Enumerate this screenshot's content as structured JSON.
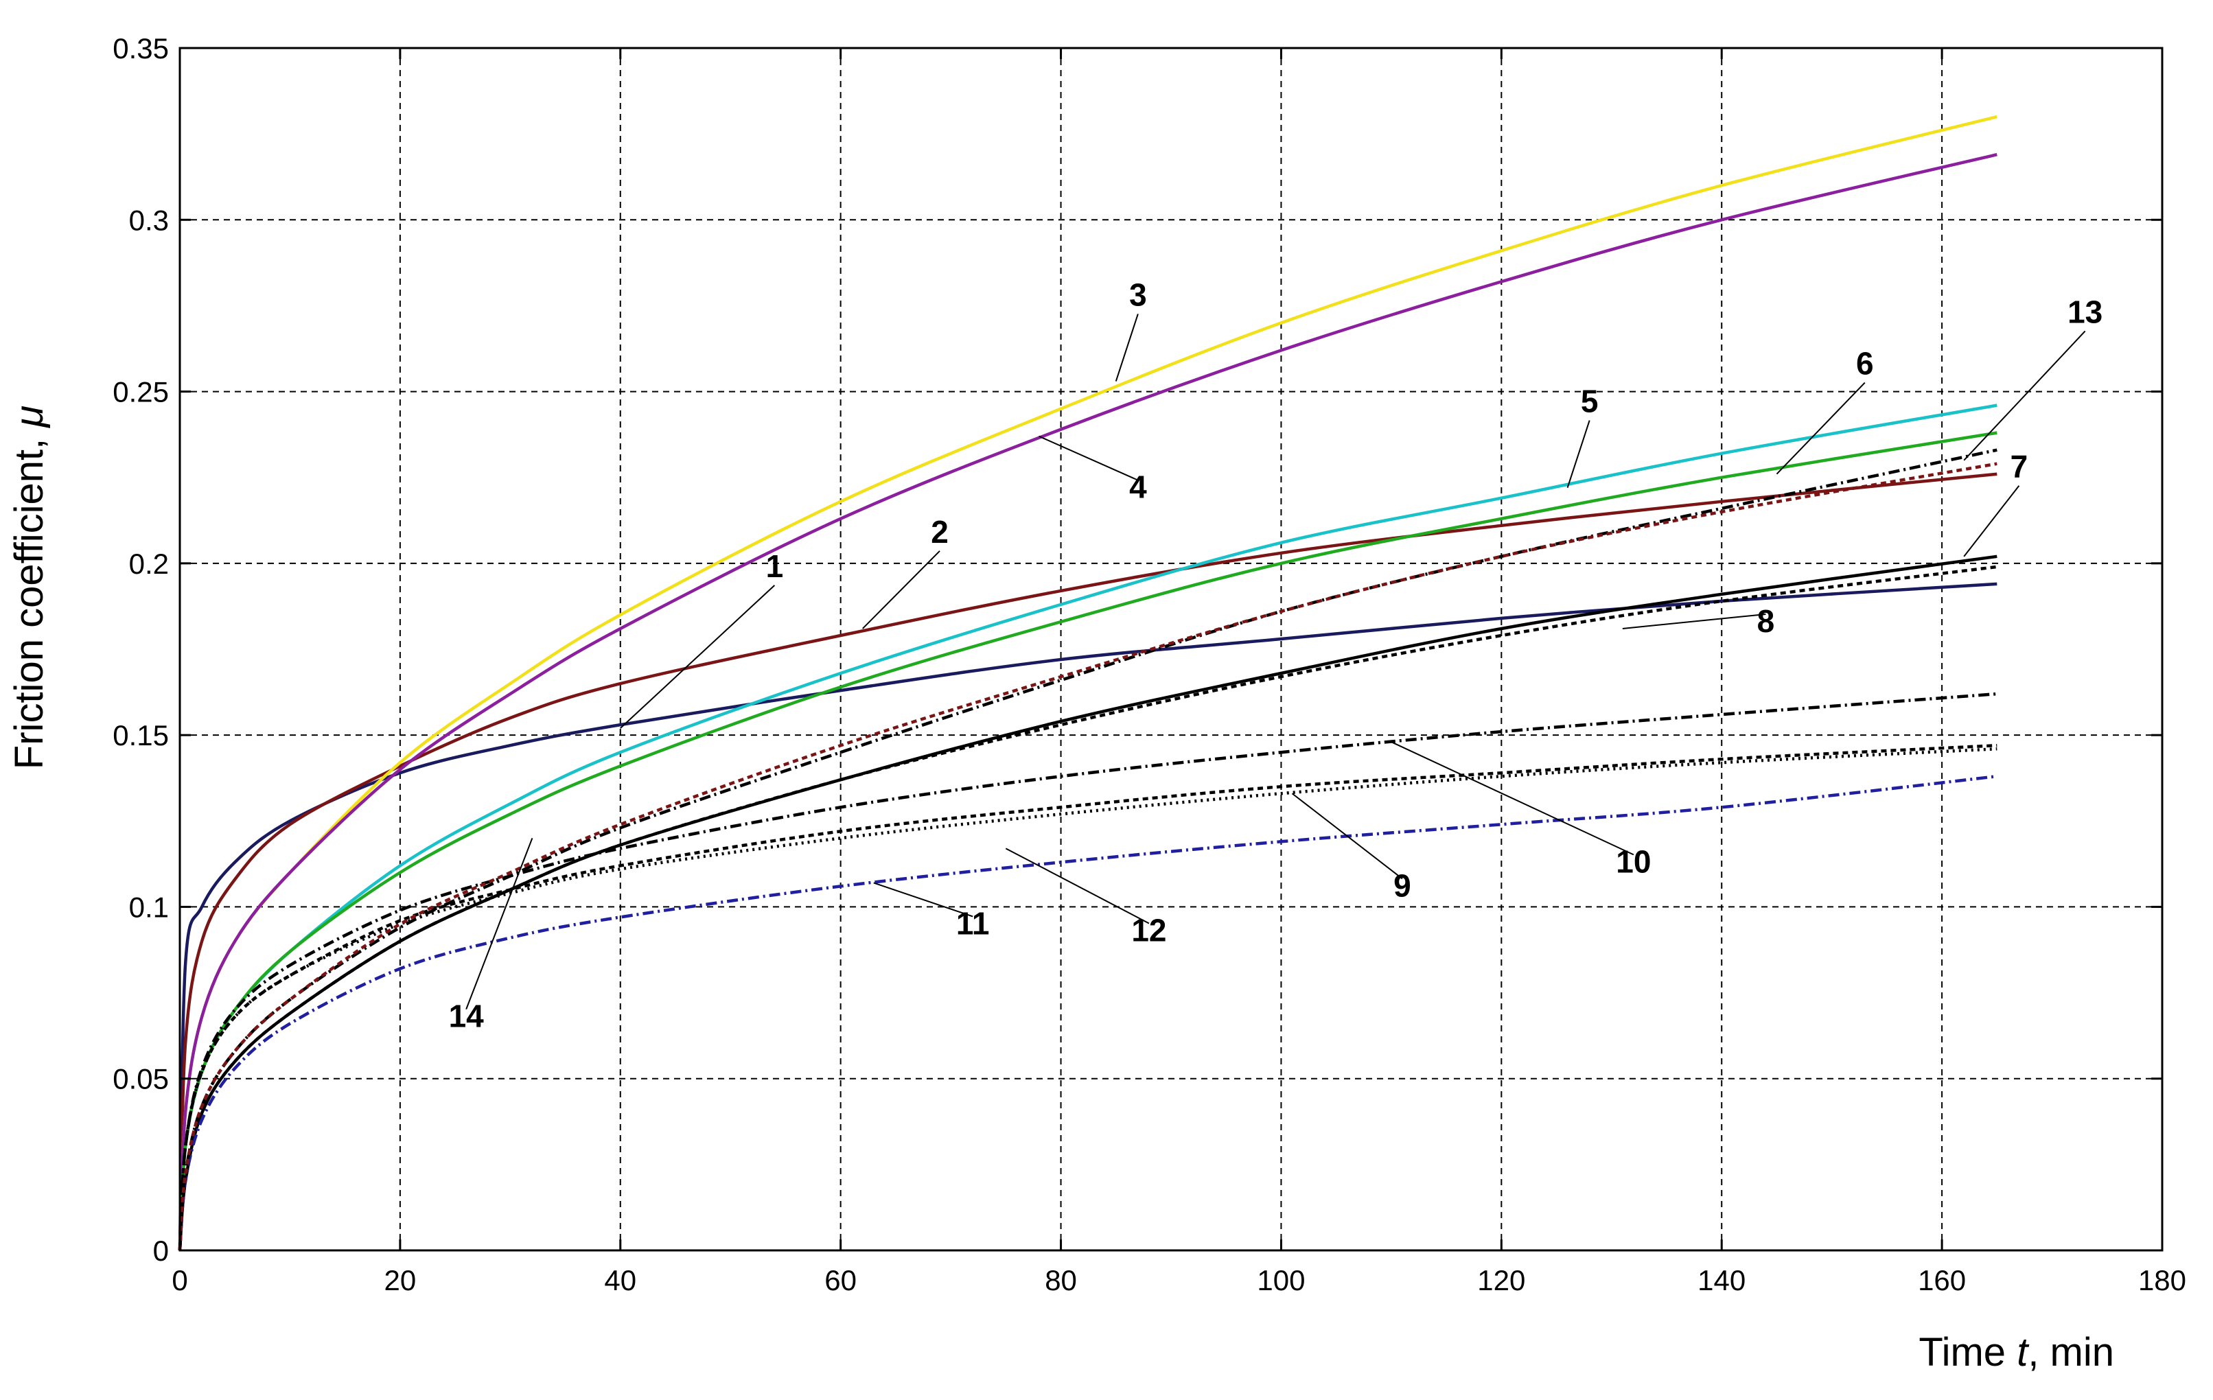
{
  "chart_data": {
    "type": "line",
    "title": "",
    "xlabel_parts": [
      "Time ",
      "t",
      ", min"
    ],
    "ylabel_parts": [
      "Friction coefficient, ",
      "μ"
    ],
    "xlim": [
      0,
      180
    ],
    "ylim": [
      0,
      0.35
    ],
    "x_ticks": [
      0,
      20,
      40,
      60,
      80,
      100,
      120,
      140,
      160,
      180
    ],
    "y_ticks": [
      0,
      0.05,
      0.1,
      0.15,
      0.2,
      0.25,
      0.3,
      0.35
    ],
    "x_tick_labels": [
      "0",
      "20",
      "40",
      "60",
      "80",
      "100",
      "120",
      "140",
      "160",
      "180"
    ],
    "y_tick_labels": [
      "0",
      "0.05",
      "0.1",
      "0.15",
      "0.2",
      "0.25",
      "0.3",
      "0.35"
    ],
    "grid": true,
    "legend": "none",
    "series": [
      {
        "label": "1",
        "color": "#1a1a5e",
        "dash": "solid",
        "x": [
          0,
          0.5,
          2,
          5,
          10,
          20,
          30,
          40,
          60,
          80,
          100,
          120,
          140,
          165
        ],
        "y": [
          0,
          0.083,
          0.1,
          0.113,
          0.125,
          0.139,
          0.147,
          0.153,
          0.163,
          0.172,
          0.178,
          0.184,
          0.189,
          0.194
        ]
      },
      {
        "label": "2",
        "color": "#7b1515",
        "dash": "solid",
        "x": [
          0,
          0.5,
          2,
          5,
          10,
          20,
          30,
          40,
          60,
          80,
          100,
          120,
          140,
          165
        ],
        "y": [
          0,
          0.06,
          0.09,
          0.108,
          0.124,
          0.141,
          0.155,
          0.165,
          0.179,
          0.192,
          0.203,
          0.211,
          0.218,
          0.226
        ]
      },
      {
        "label": "3",
        "color": "#f2e11a",
        "dash": "solid",
        "x": [
          0,
          0.5,
          2,
          5,
          10,
          20,
          30,
          40,
          60,
          80,
          100,
          120,
          140,
          165
        ],
        "y": [
          0,
          0.04,
          0.068,
          0.09,
          0.11,
          0.142,
          0.165,
          0.185,
          0.218,
          0.245,
          0.27,
          0.291,
          0.31,
          0.33
        ]
      },
      {
        "label": "4",
        "color": "#8b1f9e",
        "dash": "solid",
        "x": [
          0,
          0.5,
          2,
          5,
          10,
          20,
          30,
          40,
          60,
          80,
          100,
          120,
          140,
          165
        ],
        "y": [
          0,
          0.04,
          0.068,
          0.09,
          0.11,
          0.14,
          0.162,
          0.181,
          0.213,
          0.239,
          0.262,
          0.282,
          0.3,
          0.319
        ]
      },
      {
        "label": "5",
        "color": "#19c2c8",
        "dash": "solid",
        "x": [
          0,
          0.5,
          2,
          5,
          10,
          20,
          30,
          40,
          60,
          80,
          100,
          120,
          140,
          165
        ],
        "y": [
          0,
          0.03,
          0.052,
          0.07,
          0.087,
          0.112,
          0.13,
          0.145,
          0.168,
          0.188,
          0.206,
          0.219,
          0.232,
          0.246
        ]
      },
      {
        "label": "6",
        "color": "#1faa1f",
        "dash": "solid",
        "x": [
          0,
          0.5,
          2,
          5,
          10,
          20,
          30,
          40,
          60,
          80,
          100,
          120,
          140,
          165
        ],
        "y": [
          0,
          0.03,
          0.052,
          0.07,
          0.087,
          0.11,
          0.127,
          0.141,
          0.164,
          0.183,
          0.2,
          0.213,
          0.225,
          0.238
        ]
      },
      {
        "label": "7",
        "color": "#000000",
        "dash": "solid",
        "x": [
          0,
          0.5,
          2,
          5,
          10,
          20,
          30,
          40,
          60,
          80,
          100,
          120,
          140,
          165
        ],
        "y": [
          0,
          0.02,
          0.04,
          0.055,
          0.069,
          0.09,
          0.105,
          0.118,
          0.137,
          0.154,
          0.168,
          0.181,
          0.191,
          0.202
        ]
      },
      {
        "label": "8",
        "color": "#000000",
        "dash": "8 6",
        "x": [
          0,
          0.5,
          2,
          5,
          10,
          20,
          30,
          40,
          60,
          80,
          100,
          120,
          140,
          165
        ],
        "y": [
          0,
          0.02,
          0.04,
          0.055,
          0.069,
          0.09,
          0.105,
          0.118,
          0.137,
          0.153,
          0.167,
          0.179,
          0.189,
          0.199
        ]
      },
      {
        "label": "9",
        "color": "#000000",
        "dash": "3 6",
        "x": [
          0,
          0.5,
          2,
          5,
          10,
          20,
          30,
          40,
          60,
          80,
          100,
          120,
          140,
          165
        ],
        "y": [
          0,
          0.03,
          0.052,
          0.068,
          0.08,
          0.095,
          0.104,
          0.111,
          0.12,
          0.127,
          0.133,
          0.138,
          0.142,
          0.146
        ]
      },
      {
        "label": "10",
        "color": "#000000",
        "dash": "16 6 3 6",
        "x": [
          0,
          0.5,
          2,
          5,
          10,
          20,
          30,
          40,
          60,
          80,
          100,
          120,
          140,
          165
        ],
        "y": [
          0,
          0.03,
          0.053,
          0.07,
          0.083,
          0.099,
          0.109,
          0.117,
          0.129,
          0.138,
          0.145,
          0.151,
          0.156,
          0.162
        ]
      },
      {
        "label": "11",
        "color": "#1f1fa0",
        "dash": "16 6 3 6",
        "x": [
          0,
          0.5,
          2,
          5,
          10,
          20,
          30,
          40,
          60,
          80,
          100,
          120,
          140,
          165
        ],
        "y": [
          0,
          0.02,
          0.038,
          0.053,
          0.066,
          0.082,
          0.091,
          0.097,
          0.106,
          0.113,
          0.119,
          0.124,
          0.129,
          0.138
        ]
      },
      {
        "label": "12",
        "color": "#000000",
        "dash": "8 6",
        "x": [
          0,
          0.5,
          2,
          5,
          10,
          20,
          30,
          40,
          60,
          80,
          100,
          120,
          140,
          165
        ],
        "y": [
          0,
          0.03,
          0.052,
          0.068,
          0.08,
          0.096,
          0.105,
          0.112,
          0.122,
          0.129,
          0.135,
          0.139,
          0.143,
          0.147
        ]
      },
      {
        "label": "13",
        "color": "#000000",
        "dash": "16 6 3 6",
        "x": [
          0,
          0.5,
          2,
          5,
          10,
          20,
          30,
          40,
          60,
          80,
          100,
          120,
          140,
          165
        ],
        "y": [
          0,
          0.022,
          0.042,
          0.058,
          0.073,
          0.094,
          0.109,
          0.123,
          0.145,
          0.166,
          0.186,
          0.202,
          0.216,
          0.233
        ]
      },
      {
        "label": "14",
        "color": "#7b1515",
        "dash": "8 6",
        "x": [
          0,
          0.5,
          2,
          5,
          10,
          20,
          30,
          40,
          60,
          80,
          100,
          120,
          140,
          165
        ],
        "y": [
          0,
          0.022,
          0.042,
          0.058,
          0.073,
          0.095,
          0.11,
          0.124,
          0.147,
          0.167,
          0.186,
          0.202,
          0.215,
          0.229
        ]
      }
    ],
    "annotations": [
      {
        "text": "1",
        "point": [
          40,
          0.152
        ],
        "label_at": [
          54,
          0.196
        ]
      },
      {
        "text": "2",
        "point": [
          62,
          0.181
        ],
        "label_at": [
          69,
          0.206
        ]
      },
      {
        "text": "3",
        "point": [
          85,
          0.253
        ],
        "label_at": [
          87,
          0.275
        ]
      },
      {
        "text": "4",
        "point": [
          78,
          0.237
        ],
        "label_at": [
          87,
          0.219
        ]
      },
      {
        "text": "5",
        "point": [
          126,
          0.222
        ],
        "label_at": [
          128,
          0.244
        ]
      },
      {
        "text": "6",
        "point": [
          145,
          0.226
        ],
        "label_at": [
          153,
          0.255
        ]
      },
      {
        "text": "7",
        "point": [
          162,
          0.202
        ],
        "label_at": [
          167,
          0.225
        ]
      },
      {
        "text": "8",
        "point": [
          131,
          0.181
        ],
        "label_at": [
          144,
          0.18
        ]
      },
      {
        "text": "9",
        "point": [
          101,
          0.133
        ],
        "label_at": [
          111,
          0.103
        ]
      },
      {
        "text": "10",
        "point": [
          110,
          0.148
        ],
        "label_at": [
          132,
          0.11
        ]
      },
      {
        "text": "11",
        "point": [
          63,
          0.107
        ],
        "label_at": [
          72,
          0.092
        ]
      },
      {
        "text": "12",
        "point": [
          75,
          0.117
        ],
        "label_at": [
          88,
          0.09
        ]
      },
      {
        "text": "13",
        "point": [
          162,
          0.23
        ],
        "label_at": [
          173,
          0.27
        ]
      },
      {
        "text": "14",
        "point": [
          32,
          0.12
        ],
        "label_at": [
          26,
          0.065
        ]
      }
    ]
  }
}
